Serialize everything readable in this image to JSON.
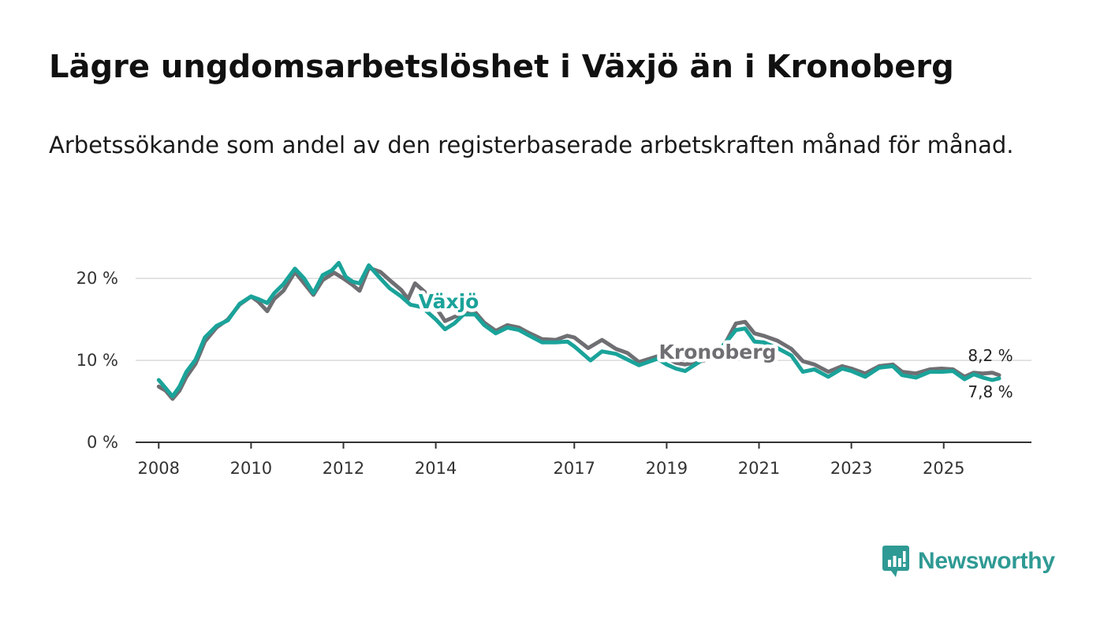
{
  "title": "Lägre ungdomsarbetslöshet i Växjö än i Kronoberg",
  "subtitle": "Arbetssökande som andel av den registerbaserade arbetskraften månad för månad.",
  "brand": {
    "name": "Newsworthy",
    "color": "#2f9a94"
  },
  "colors": {
    "vaxjo": "#1aa39a",
    "kronoberg": "#6f6f73",
    "grid": "#d9d9d9",
    "axis": "#333333"
  },
  "chart_data": {
    "type": "line",
    "title": "Lägre ungdomsarbetslöshet i Växjö än i Kronoberg",
    "ylabel": "",
    "xlabel": "",
    "ylim": [
      0,
      23
    ],
    "xlim": [
      2007.5,
      2026.9
    ],
    "y_ticks": [
      {
        "value": 0,
        "label": "0 %"
      },
      {
        "value": 10,
        "label": "10 %"
      },
      {
        "value": 20,
        "label": "20 %"
      }
    ],
    "x_ticks": [
      {
        "value": 2008,
        "label": "2008"
      },
      {
        "value": 2010,
        "label": "2010"
      },
      {
        "value": 2012,
        "label": "2012"
      },
      {
        "value": 2014,
        "label": "2014"
      },
      {
        "value": 2017,
        "label": "2017"
      },
      {
        "value": 2019,
        "label": "2019"
      },
      {
        "value": 2021,
        "label": "2021"
      },
      {
        "value": 2023,
        "label": "2023"
      },
      {
        "value": 2025,
        "label": "2025"
      }
    ],
    "grid": true,
    "series": [
      {
        "name": "Kronoberg",
        "label": "Kronoberg",
        "end_label": "8,2 %",
        "points": [
          [
            2008.0,
            6.8
          ],
          [
            2008.15,
            6.3
          ],
          [
            2008.3,
            5.3
          ],
          [
            2008.45,
            6.3
          ],
          [
            2008.6,
            8.0
          ],
          [
            2008.8,
            9.6
          ],
          [
            2009.0,
            12.3
          ],
          [
            2009.25,
            14.0
          ],
          [
            2009.5,
            15.0
          ],
          [
            2009.75,
            16.8
          ],
          [
            2010.0,
            17.8
          ],
          [
            2010.15,
            17.2
          ],
          [
            2010.35,
            16.0
          ],
          [
            2010.5,
            17.5
          ],
          [
            2010.7,
            18.5
          ],
          [
            2010.95,
            20.8
          ],
          [
            2011.15,
            19.4
          ],
          [
            2011.35,
            18.0
          ],
          [
            2011.55,
            19.8
          ],
          [
            2011.8,
            20.7
          ],
          [
            2012.0,
            20.0
          ],
          [
            2012.2,
            19.2
          ],
          [
            2012.35,
            18.5
          ],
          [
            2012.55,
            21.3
          ],
          [
            2012.8,
            20.8
          ],
          [
            2013.0,
            19.8
          ],
          [
            2013.25,
            18.6
          ],
          [
            2013.4,
            17.5
          ],
          [
            2013.55,
            19.4
          ],
          [
            2013.75,
            18.4
          ],
          [
            2014.0,
            16.5
          ],
          [
            2014.2,
            14.8
          ],
          [
            2014.4,
            15.3
          ],
          [
            2014.6,
            15.7
          ],
          [
            2014.85,
            15.9
          ],
          [
            2015.05,
            14.6
          ],
          [
            2015.3,
            13.6
          ],
          [
            2015.55,
            14.3
          ],
          [
            2015.8,
            14.0
          ],
          [
            2016.0,
            13.4
          ],
          [
            2016.3,
            12.6
          ],
          [
            2016.6,
            12.5
          ],
          [
            2016.85,
            13.0
          ],
          [
            2017.0,
            12.8
          ],
          [
            2017.3,
            11.5
          ],
          [
            2017.6,
            12.5
          ],
          [
            2017.9,
            11.4
          ],
          [
            2018.15,
            10.9
          ],
          [
            2018.4,
            9.8
          ],
          [
            2018.8,
            10.5
          ],
          [
            2019.0,
            10.3
          ],
          [
            2019.2,
            9.7
          ],
          [
            2019.4,
            9.5
          ],
          [
            2020.15,
            10.4
          ],
          [
            2020.3,
            12.4
          ],
          [
            2020.5,
            14.5
          ],
          [
            2020.7,
            14.7
          ],
          [
            2020.9,
            13.3
          ],
          [
            2021.1,
            13.0
          ],
          [
            2021.4,
            12.4
          ],
          [
            2021.7,
            11.4
          ],
          [
            2021.95,
            9.9
          ],
          [
            2022.2,
            9.5
          ],
          [
            2022.5,
            8.6
          ],
          [
            2022.8,
            9.3
          ],
          [
            2023.0,
            9.0
          ],
          [
            2023.3,
            8.4
          ],
          [
            2023.6,
            9.3
          ],
          [
            2023.9,
            9.5
          ],
          [
            2024.1,
            8.6
          ],
          [
            2024.4,
            8.4
          ],
          [
            2024.7,
            8.9
          ],
          [
            2024.95,
            9.0
          ],
          [
            2025.2,
            8.9
          ],
          [
            2025.45,
            8.0
          ],
          [
            2025.65,
            8.5
          ],
          [
            2025.85,
            8.4
          ],
          [
            2026.05,
            8.5
          ],
          [
            2026.2,
            8.2
          ]
        ]
      },
      {
        "name": "Växjö",
        "label": "Växjö",
        "end_label": "7,8 %",
        "points": [
          [
            2008.0,
            7.6
          ],
          [
            2008.15,
            6.6
          ],
          [
            2008.3,
            5.6
          ],
          [
            2008.45,
            6.8
          ],
          [
            2008.6,
            8.6
          ],
          [
            2008.8,
            10.1
          ],
          [
            2009.0,
            12.8
          ],
          [
            2009.25,
            14.2
          ],
          [
            2009.5,
            14.9
          ],
          [
            2009.75,
            16.9
          ],
          [
            2010.0,
            17.8
          ],
          [
            2010.15,
            17.5
          ],
          [
            2010.35,
            17.0
          ],
          [
            2010.5,
            18.2
          ],
          [
            2010.7,
            19.3
          ],
          [
            2010.95,
            21.2
          ],
          [
            2011.15,
            20.0
          ],
          [
            2011.35,
            18.2
          ],
          [
            2011.55,
            20.4
          ],
          [
            2011.75,
            21.0
          ],
          [
            2011.9,
            21.9
          ],
          [
            2012.05,
            20.2
          ],
          [
            2012.2,
            19.6
          ],
          [
            2012.35,
            19.4
          ],
          [
            2012.55,
            21.6
          ],
          [
            2012.8,
            20.0
          ],
          [
            2013.0,
            18.8
          ],
          [
            2013.25,
            17.8
          ],
          [
            2013.45,
            16.8
          ],
          [
            2013.7,
            16.5
          ],
          [
            2014.0,
            15.0
          ],
          [
            2014.2,
            13.8
          ],
          [
            2014.4,
            14.5
          ],
          [
            2014.6,
            15.6
          ],
          [
            2014.85,
            15.6
          ],
          [
            2015.05,
            14.3
          ],
          [
            2015.3,
            13.3
          ],
          [
            2015.55,
            14.0
          ],
          [
            2015.8,
            13.7
          ],
          [
            2016.0,
            13.1
          ],
          [
            2016.3,
            12.2
          ],
          [
            2016.6,
            12.2
          ],
          [
            2016.85,
            12.3
          ],
          [
            2017.0,
            11.7
          ],
          [
            2017.35,
            10.0
          ],
          [
            2017.6,
            11.1
          ],
          [
            2017.9,
            10.8
          ],
          [
            2018.15,
            10.1
          ],
          [
            2018.4,
            9.4
          ],
          [
            2018.8,
            10.2
          ],
          [
            2019.0,
            9.5
          ],
          [
            2019.2,
            9.0
          ],
          [
            2019.4,
            8.7
          ],
          [
            2020.15,
            11.4
          ],
          [
            2020.3,
            12.3
          ],
          [
            2020.5,
            13.7
          ],
          [
            2020.7,
            13.9
          ],
          [
            2020.9,
            12.3
          ],
          [
            2021.1,
            12.2
          ],
          [
            2021.4,
            11.5
          ],
          [
            2021.7,
            10.6
          ],
          [
            2021.95,
            8.6
          ],
          [
            2022.2,
            8.9
          ],
          [
            2022.5,
            8.0
          ],
          [
            2022.8,
            9.0
          ],
          [
            2023.0,
            8.7
          ],
          [
            2023.3,
            8.0
          ],
          [
            2023.6,
            9.1
          ],
          [
            2023.9,
            9.3
          ],
          [
            2024.1,
            8.2
          ],
          [
            2024.4,
            7.9
          ],
          [
            2024.7,
            8.6
          ],
          [
            2024.95,
            8.6
          ],
          [
            2025.2,
            8.7
          ],
          [
            2025.45,
            7.7
          ],
          [
            2025.65,
            8.3
          ],
          [
            2025.85,
            7.9
          ],
          [
            2026.05,
            7.6
          ],
          [
            2026.2,
            7.8
          ]
        ]
      }
    ]
  }
}
